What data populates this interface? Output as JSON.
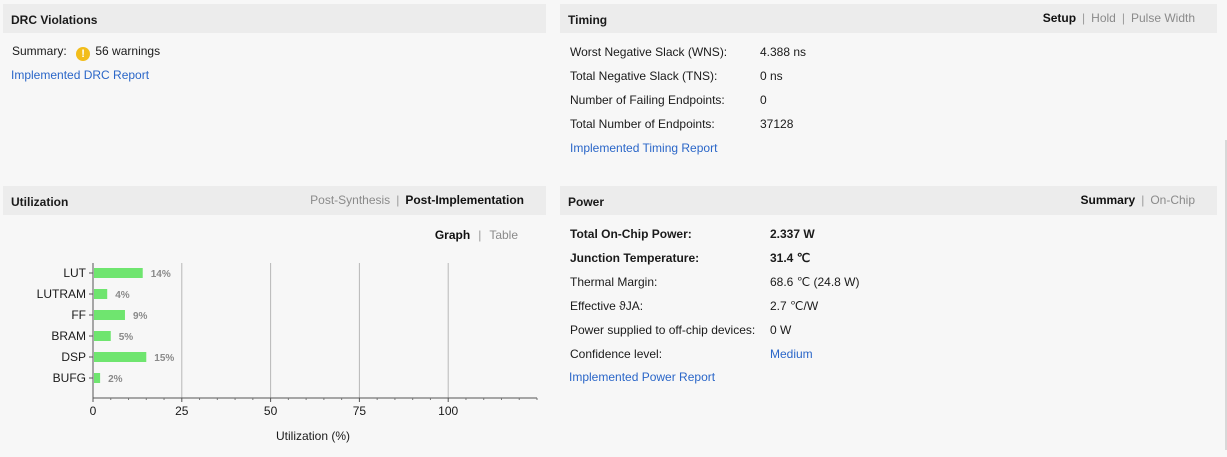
{
  "drc": {
    "title": "DRC Violations",
    "summary_label": "Summary:",
    "warning_icon": "warning-icon",
    "warnings_text": "56 warnings",
    "report_link": "Implemented DRC Report"
  },
  "timing": {
    "title": "Timing",
    "tabs": [
      {
        "label": "Setup",
        "active": true
      },
      {
        "label": "Hold",
        "active": false
      },
      {
        "label": "Pulse Width",
        "active": false
      }
    ],
    "rows": [
      {
        "label": "Worst Negative Slack (WNS):",
        "value": "4.388 ns"
      },
      {
        "label": "Total Negative Slack (TNS):",
        "value": "0 ns"
      },
      {
        "label": "Number of Failing Endpoints:",
        "value": "0"
      },
      {
        "label": "Total Number of Endpoints:",
        "value": "37128"
      }
    ],
    "report_link": "Implemented Timing Report"
  },
  "utilization": {
    "title": "Utilization",
    "tabs": [
      {
        "label": "Post-Synthesis",
        "active": false
      },
      {
        "label": "Post-Implementation",
        "active": true
      }
    ],
    "view_tabs": [
      {
        "label": "Graph",
        "active": true
      },
      {
        "label": "Table",
        "active": false
      }
    ]
  },
  "chart_data": {
    "type": "bar",
    "orientation": "horizontal",
    "categories": [
      "LUT",
      "LUTRAM",
      "FF",
      "BRAM",
      "DSP",
      "BUFG"
    ],
    "values": [
      14,
      4,
      9,
      5,
      15,
      2
    ],
    "value_labels": [
      "14%",
      "4%",
      "9%",
      "5%",
      "15%",
      "2%"
    ],
    "xlabel": "Utilization (%)",
    "xlim": [
      0,
      125
    ],
    "xticks": [
      0,
      25,
      50,
      75,
      100
    ],
    "grid": true,
    "bar_color": "#6fe56f"
  },
  "power": {
    "title": "Power",
    "tabs": [
      {
        "label": "Summary",
        "active": true
      },
      {
        "label": "On-Chip",
        "active": false
      }
    ],
    "rows": [
      {
        "label": "Total On-Chip Power:",
        "value": "2.337 W",
        "bold": true
      },
      {
        "label": "Junction Temperature:",
        "value": "31.4 ℃",
        "bold": true
      },
      {
        "label": "Thermal Margin:",
        "value": "68.6 ℃ (24.8 W)",
        "bold": false
      },
      {
        "label": "Effective ϑJA:",
        "value": "2.7 ℃/W",
        "bold": false
      },
      {
        "label": "Power supplied to off-chip devices:",
        "value": "0 W",
        "bold": false
      },
      {
        "label": "Confidence level:",
        "value": "Medium",
        "bold": false,
        "link": true
      }
    ],
    "report_link": "Implemented Power Report"
  },
  "colors": {
    "link": "#2a66c8",
    "header_bg": "#ececec",
    "warning": "#f2bd1b",
    "bar": "#6fe56f"
  }
}
